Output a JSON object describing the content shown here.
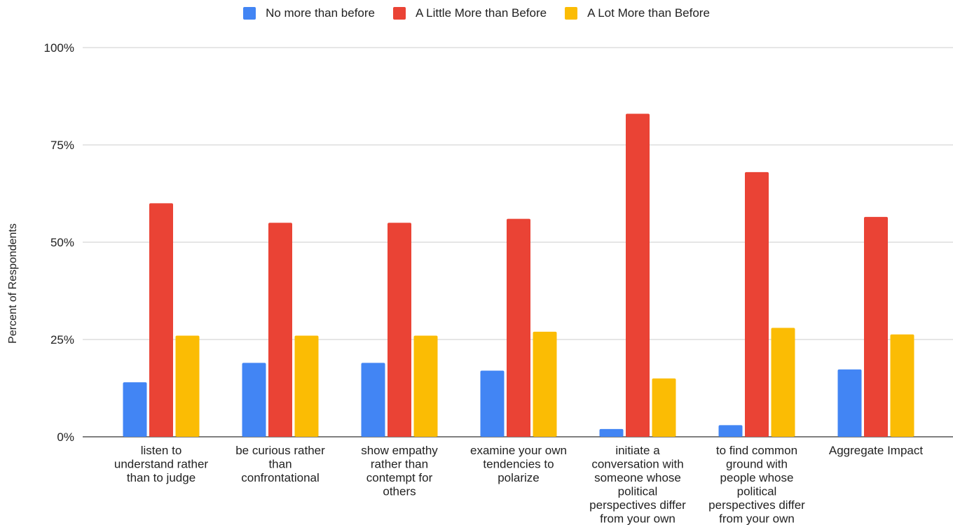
{
  "chart_data": {
    "type": "bar",
    "title": "",
    "xlabel": "",
    "ylabel": "Percent of Respondents",
    "ylim": [
      0,
      100
    ],
    "yticks": [
      0,
      25,
      50,
      75,
      100
    ],
    "ytick_labels": [
      "0%",
      "25%",
      "50%",
      "75%",
      "100%"
    ],
    "grid": true,
    "legend_position": "top-center",
    "categories": [
      "listen to understand rather than to judge",
      "be curious rather than confrontational",
      "show empathy rather than contempt for others",
      "examine your own tendencies to polarize",
      "initiate a conversation with someone whose political perspectives differ from your own",
      "to find common ground with people whose political perspectives differ from your own",
      "Aggregate Impact"
    ],
    "category_label_lines": [
      [
        "listen to",
        "understand rather",
        "than to judge"
      ],
      [
        "be curious rather",
        "than",
        "confrontational"
      ],
      [
        "show empathy",
        "rather than",
        "contempt for",
        "others"
      ],
      [
        "examine your own",
        "tendencies to",
        "polarize"
      ],
      [
        "initiate a",
        "conversation with",
        "someone whose",
        "political",
        "perspectives differ",
        "from your own"
      ],
      [
        "to find common",
        "ground with",
        "people whose",
        "political",
        "perspectives differ",
        "from your own"
      ],
      [
        "Aggregate Impact"
      ]
    ],
    "series": [
      {
        "name": "No more than before",
        "color": "#4285f4",
        "values": [
          14,
          19,
          19,
          17,
          2,
          3,
          17.3
        ]
      },
      {
        "name": "A Little More than Before",
        "color": "#ea4335",
        "values": [
          60,
          55,
          55,
          56,
          83,
          68,
          56.5
        ]
      },
      {
        "name": "A Lot More than Before",
        "color": "#fbbc04",
        "values": [
          26,
          26,
          26,
          27,
          15,
          28,
          26.3
        ]
      }
    ]
  }
}
